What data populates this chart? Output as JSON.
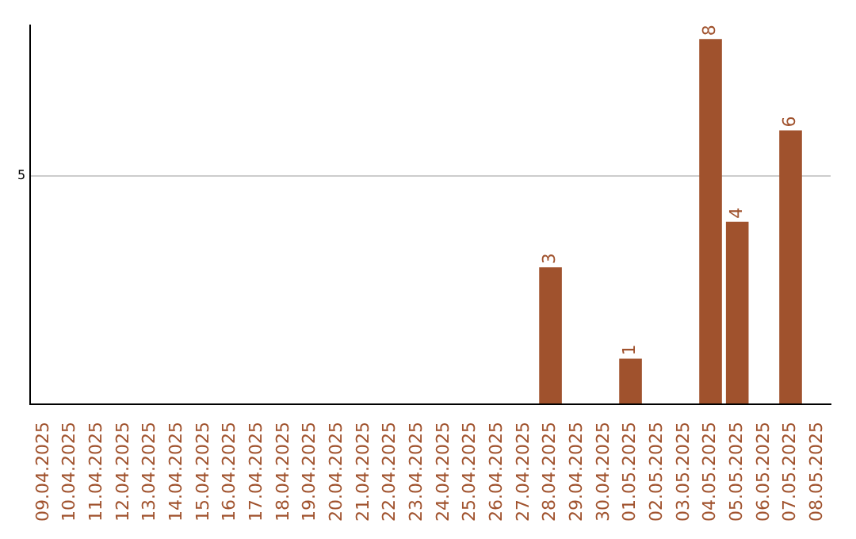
{
  "chart_data": {
    "type": "bar",
    "categories": [
      "09.04.2025",
      "10.04.2025",
      "11.04.2025",
      "12.04.2025",
      "13.04.2025",
      "14.04.2025",
      "15.04.2025",
      "16.04.2025",
      "17.04.2025",
      "18.04.2025",
      "19.04.2025",
      "20.04.2025",
      "21.04.2025",
      "22.04.2025",
      "23.04.2025",
      "24.04.2025",
      "25.04.2025",
      "26.04.2025",
      "27.04.2025",
      "28.04.2025",
      "29.04.2025",
      "30.04.2025",
      "01.05.2025",
      "02.05.2025",
      "03.05.2025",
      "04.05.2025",
      "05.05.2025",
      "06.05.2025",
      "07.05.2025",
      "08.05.2025"
    ],
    "values": [
      null,
      null,
      null,
      null,
      null,
      null,
      null,
      null,
      null,
      null,
      null,
      null,
      null,
      null,
      null,
      null,
      null,
      null,
      null,
      3,
      null,
      null,
      1,
      null,
      null,
      8,
      4,
      null,
      6,
      null
    ],
    "color": "#a0522d",
    "ylim": [
      0,
      8.3
    ],
    "yticks": [
      {
        "value": 0,
        "label": null
      },
      5
    ],
    "grid": "y",
    "data_labels": true,
    "legend": false
  }
}
